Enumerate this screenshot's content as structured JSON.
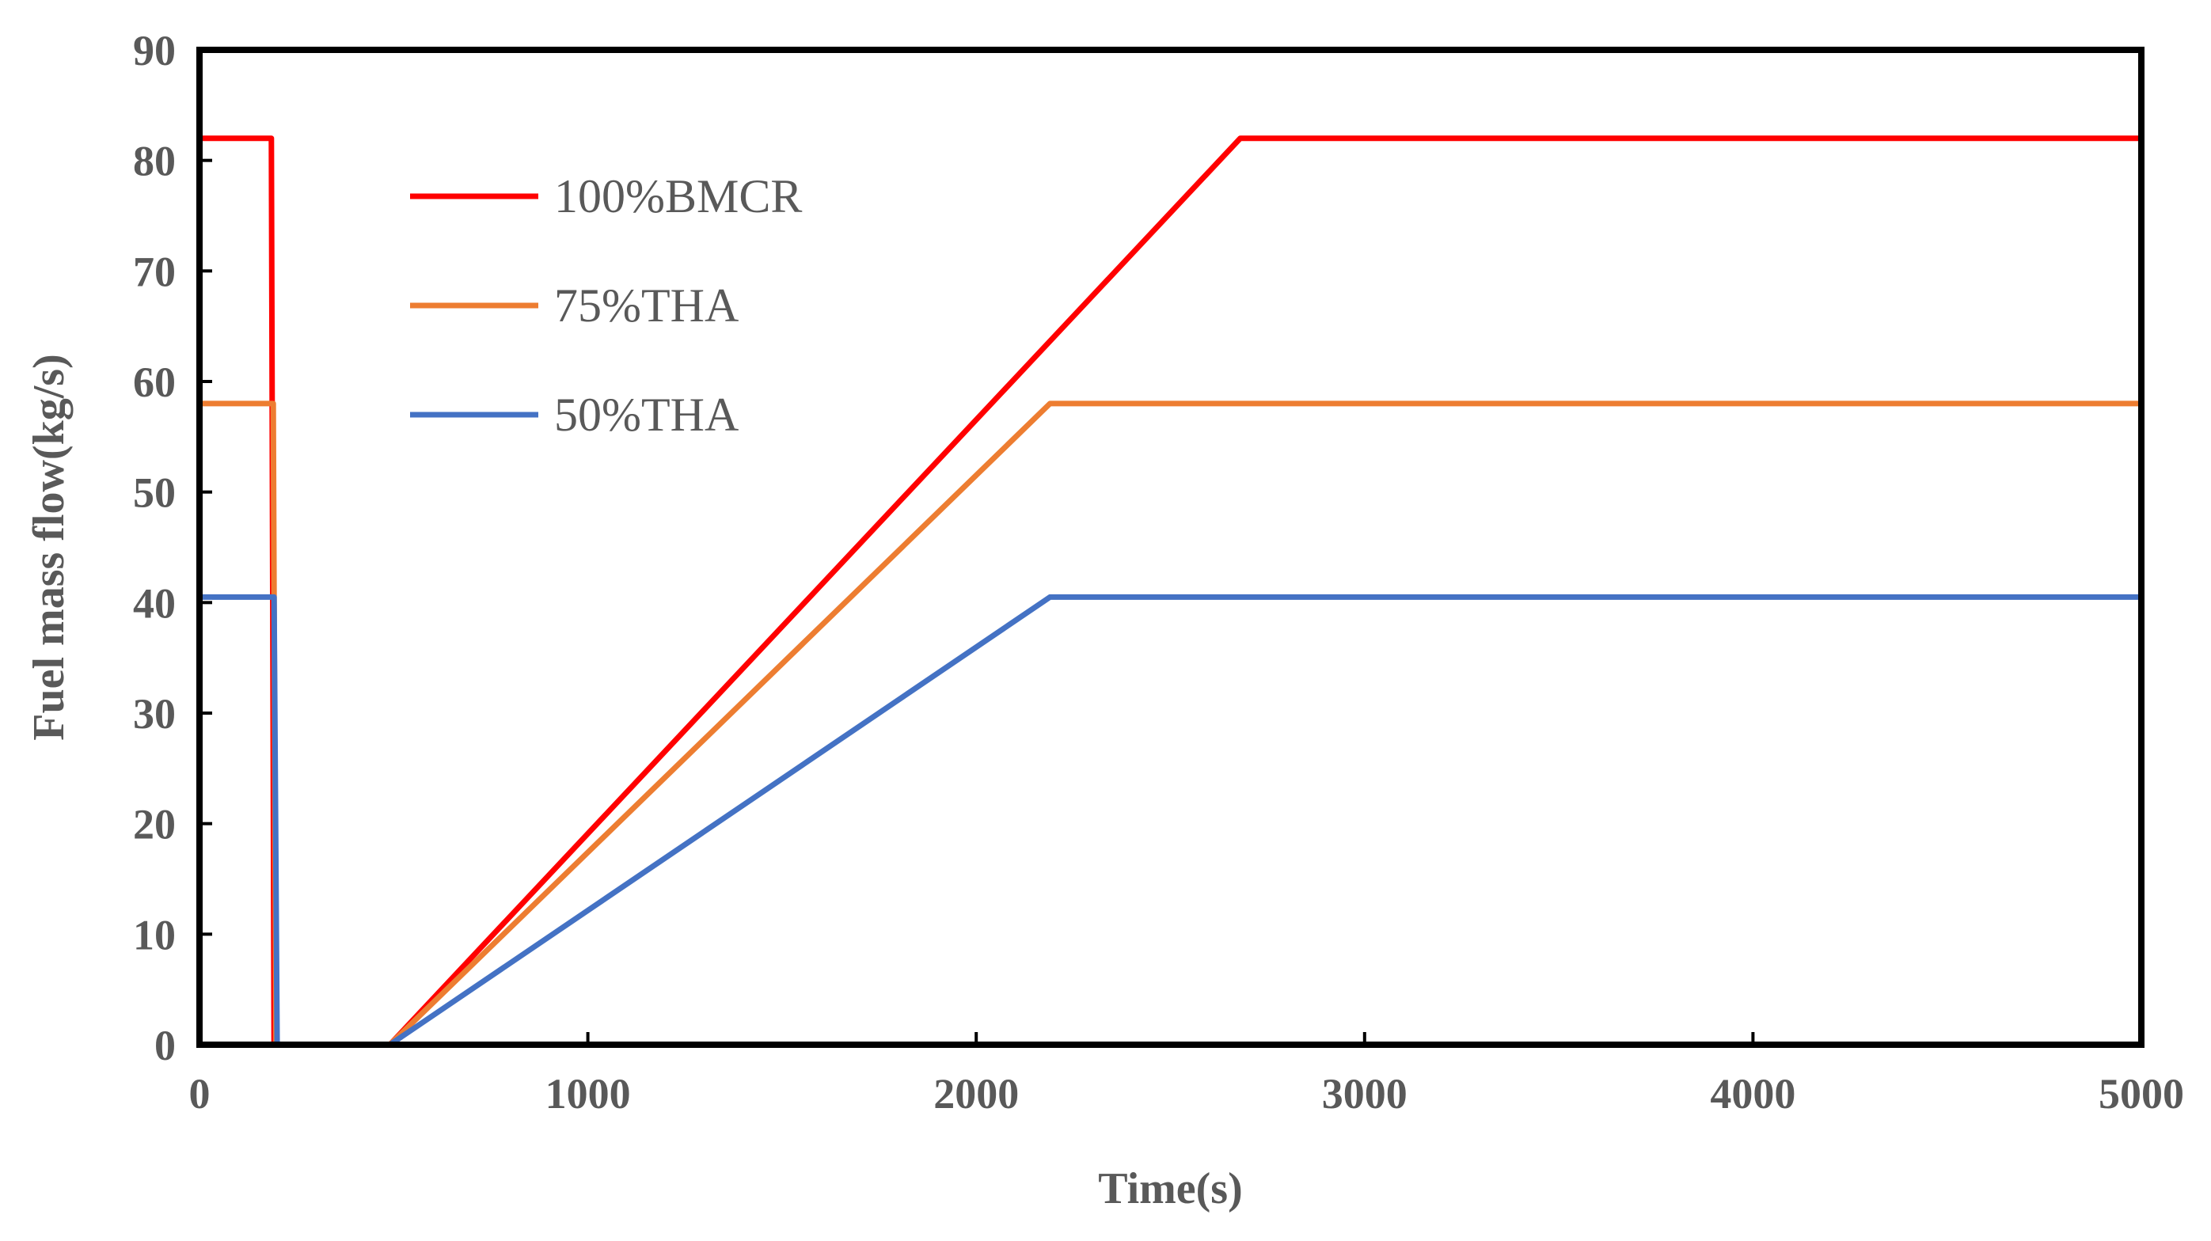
{
  "chart_data": {
    "type": "line",
    "title": "",
    "xlabel": "Time(s)",
    "ylabel": "Fuel mass flow(kg/s)",
    "xlim": [
      0,
      5000
    ],
    "ylim": [
      0,
      90
    ],
    "xticks": [
      0,
      1000,
      2000,
      3000,
      4000,
      5000
    ],
    "yticks": [
      0,
      10,
      20,
      30,
      40,
      50,
      60,
      70,
      80,
      90
    ],
    "grid": false,
    "legend_position": "top-left",
    "series": [
      {
        "name": "100%BMCR",
        "color": "#ff0000",
        "x": [
          0,
          185,
          192,
          210,
          490,
          2680,
          5000
        ],
        "y": [
          82,
          82,
          0,
          0,
          0,
          82,
          82
        ]
      },
      {
        "name": "75%THA",
        "color": "#ed7d31",
        "x": [
          0,
          190,
          197,
          210,
          490,
          2190,
          5000
        ],
        "y": [
          58,
          58,
          0,
          0,
          0,
          58,
          58
        ]
      },
      {
        "name": "50%THA",
        "color": "#4472c4",
        "x": [
          0,
          192,
          200,
          210,
          490,
          2190,
          5000
        ],
        "y": [
          40.5,
          40.5,
          0,
          0,
          0,
          40.5,
          40.5
        ]
      }
    ]
  }
}
